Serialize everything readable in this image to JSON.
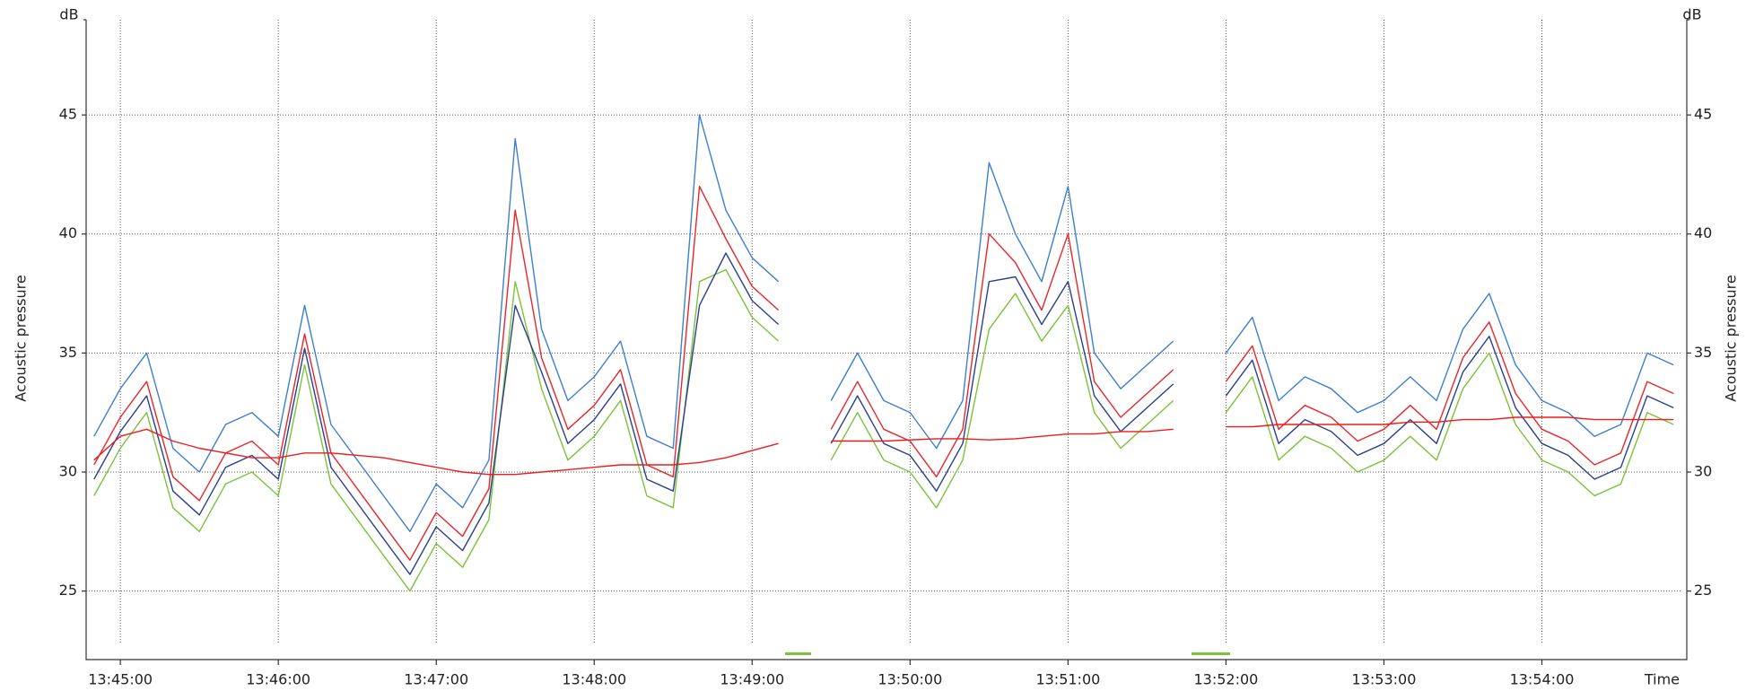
{
  "chart_data": {
    "type": "line",
    "y_label": "Acoustic pressure",
    "y_unit": "dB",
    "x_label": "Time",
    "x": [
      "13:44:50",
      "13:45:00",
      "13:45:10",
      "13:45:20",
      "13:45:30",
      "13:45:40",
      "13:45:50",
      "13:46:00",
      "13:46:10",
      "13:46:20",
      "13:46:30",
      "13:46:40",
      "13:46:50",
      "13:47:00",
      "13:47:10",
      "13:47:20",
      "13:47:30",
      "13:47:40",
      "13:47:50",
      "13:48:00",
      "13:48:10",
      "13:48:20",
      "13:48:30",
      "13:48:40",
      "13:48:50",
      "13:49:00",
      "13:49:10",
      "13:49:20",
      "13:49:30",
      "13:49:40",
      "13:49:50",
      "13:50:00",
      "13:50:10",
      "13:50:20",
      "13:50:30",
      "13:50:40",
      "13:50:50",
      "13:51:00",
      "13:51:10",
      "13:51:20",
      "13:51:30",
      "13:51:40",
      "13:51:50",
      "13:52:00",
      "13:52:10",
      "13:52:20",
      "13:52:30",
      "13:52:40",
      "13:52:50",
      "13:53:00",
      "13:53:10",
      "13:53:20",
      "13:53:30",
      "13:53:40",
      "13:53:50",
      "13:54:00",
      "13:54:10",
      "13:54:20",
      "13:54:30",
      "13:54:40",
      "13:54:50"
    ],
    "series": [
      {
        "color": "#7cc23a",
        "values": [
          29,
          31,
          32.5,
          28.5,
          27.5,
          29.5,
          30,
          29,
          34.5,
          29.5,
          28,
          26.5,
          25,
          27,
          26,
          28,
          38,
          33.5,
          30.5,
          31.5,
          33,
          29,
          28.5,
          38,
          38.5,
          36.5,
          35.5,
          null,
          30.5,
          32.5,
          30.5,
          30,
          28.5,
          30.5,
          36,
          37.5,
          35.5,
          37,
          32.5,
          31,
          32,
          33,
          null,
          32.5,
          34,
          30.5,
          31.5,
          31,
          30,
          30.5,
          31.5,
          30.5,
          33.5,
          35,
          32,
          30.5,
          30,
          29,
          29.5,
          32.5,
          32
        ]
      },
      {
        "color": "#2a3f8f",
        "values": [
          29.7,
          31.7,
          33.2,
          29.2,
          28.2,
          30.2,
          30.7,
          29.7,
          35.2,
          30.2,
          28.7,
          27.2,
          25.7,
          27.7,
          26.7,
          28.7,
          37,
          34.2,
          31.2,
          32.2,
          33.7,
          29.7,
          29.2,
          37,
          39.2,
          37.2,
          36.2,
          null,
          31.2,
          33.2,
          31.2,
          30.7,
          29.2,
          31.2,
          38,
          38.2,
          36.2,
          38,
          33.2,
          31.7,
          32.7,
          33.7,
          null,
          33.2,
          34.7,
          31.2,
          32.2,
          31.7,
          30.7,
          31.2,
          32.2,
          31.2,
          34.2,
          35.7,
          32.7,
          31.2,
          30.7,
          29.7,
          30.2,
          33.2,
          32.7
        ]
      },
      {
        "color": "#e8262a",
        "values": [
          30.3,
          32.3,
          33.8,
          29.8,
          28.8,
          30.8,
          31.3,
          30.3,
          35.8,
          30.8,
          29.3,
          27.8,
          26.3,
          28.3,
          27.3,
          29.3,
          41,
          34.8,
          31.8,
          32.8,
          34.3,
          30.3,
          29.8,
          42,
          39.8,
          37.8,
          36.8,
          null,
          31.8,
          33.8,
          31.8,
          31.3,
          29.8,
          31.8,
          40,
          38.8,
          36.8,
          40,
          33.8,
          32.3,
          33.3,
          34.3,
          null,
          33.8,
          35.3,
          31.8,
          32.8,
          32.3,
          31.3,
          31.8,
          32.8,
          31.8,
          34.8,
          36.3,
          33.3,
          31.8,
          31.3,
          30.3,
          30.8,
          33.8,
          33.3
        ]
      },
      {
        "color": "#3d7fd0",
        "values": [
          31.5,
          33.5,
          35,
          31,
          30,
          32,
          32.5,
          31.5,
          37,
          32,
          30.5,
          29,
          27.5,
          29.5,
          28.5,
          30.5,
          44,
          36,
          33,
          34,
          35.5,
          31.5,
          31,
          45,
          41,
          39,
          38,
          null,
          33,
          35,
          33,
          32.5,
          31,
          33,
          43,
          40,
          38,
          42,
          35,
          33.5,
          34.5,
          35.5,
          null,
          35,
          36.5,
          33,
          34,
          33.5,
          32.5,
          33,
          34,
          33,
          36,
          37.5,
          34.5,
          33,
          32.5,
          31.5,
          32,
          35,
          34.5
        ]
      },
      {
        "color": "#ee1c1c",
        "values": [
          30.5,
          31.5,
          31.8,
          31.3,
          31,
          30.8,
          30.6,
          30.6,
          30.8,
          30.8,
          30.7,
          30.6,
          30.4,
          30.2,
          30,
          29.9,
          29.9,
          30,
          30.1,
          30.2,
          30.3,
          30.3,
          30.3,
          30.4,
          30.6,
          30.9,
          31.2,
          null,
          31.3,
          31.3,
          31.3,
          31.35,
          31.4,
          31.4,
          31.35,
          31.4,
          31.5,
          31.6,
          31.6,
          31.7,
          31.7,
          31.8,
          null,
          31.9,
          31.9,
          32,
          32,
          32,
          32,
          32,
          32.1,
          32.1,
          32.2,
          32.2,
          32.3,
          32.3,
          32.3,
          32.2,
          32.2,
          32.2,
          32.2
        ]
      }
    ],
    "xlim": [
      "13:44:47",
      "13:54:53"
    ],
    "xticks": [
      "13:45:00",
      "13:46:00",
      "13:47:00",
      "13:48:00",
      "13:49:00",
      "13:50:00",
      "13:51:00",
      "13:52:00",
      "13:53:00",
      "13:54:00"
    ],
    "ylim": [
      22.8,
      49
    ],
    "yticks": [
      25,
      30,
      35,
      40,
      45
    ],
    "grid": true
  }
}
